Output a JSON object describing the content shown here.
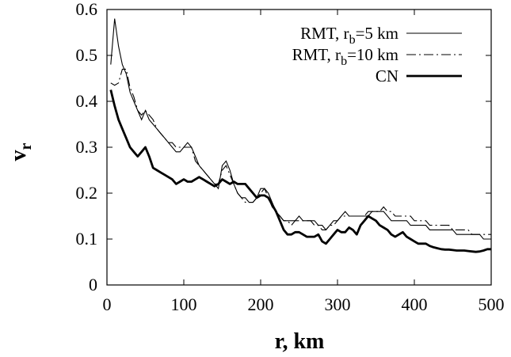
{
  "chart_data": {
    "type": "line",
    "title": "",
    "xlabel": "r, km",
    "ylabel": {
      "main": "v",
      "sub": "r"
    },
    "xlim": [
      0,
      500
    ],
    "ylim": [
      0,
      0.6
    ],
    "xticks": [
      0,
      100,
      200,
      300,
      400,
      500
    ],
    "yticks": [
      0,
      0.1,
      0.2,
      0.3,
      0.4,
      0.5,
      0.6
    ],
    "xtick_labels": [
      "0",
      "100",
      "200",
      "300",
      "400",
      "500"
    ],
    "ytick_labels": [
      "0",
      "0.1",
      "0.2",
      "0.3",
      "0.4",
      "0.5",
      "0.6"
    ],
    "grid": false,
    "legend_position": "top-right",
    "series": [
      {
        "name": "RMT, r_b=5 km",
        "legend": {
          "pre": "RMT, r",
          "sub": "b",
          "post": "=5 km"
        },
        "style": "thin-solid",
        "x": [
          5,
          10,
          15,
          20,
          25,
          30,
          35,
          40,
          45,
          50,
          55,
          60,
          65,
          70,
          75,
          80,
          85,
          90,
          95,
          100,
          105,
          110,
          115,
          120,
          125,
          130,
          135,
          140,
          145,
          150,
          155,
          160,
          165,
          170,
          175,
          180,
          185,
          190,
          195,
          200,
          205,
          210,
          215,
          220,
          225,
          230,
          235,
          240,
          245,
          250,
          255,
          260,
          265,
          270,
          275,
          280,
          285,
          290,
          295,
          300,
          305,
          310,
          315,
          320,
          325,
          330,
          335,
          340,
          345,
          350,
          355,
          360,
          365,
          370,
          375,
          380,
          385,
          390,
          395,
          400,
          405,
          410,
          415,
          420,
          425,
          430,
          435,
          440,
          445,
          450,
          455,
          460,
          465,
          470,
          475,
          480,
          485,
          490,
          495,
          500
        ],
        "y": [
          0.48,
          0.58,
          0.52,
          0.48,
          0.46,
          0.42,
          0.4,
          0.38,
          0.36,
          0.38,
          0.36,
          0.35,
          0.34,
          0.33,
          0.32,
          0.31,
          0.3,
          0.29,
          0.29,
          0.3,
          0.31,
          0.3,
          0.28,
          0.26,
          0.25,
          0.24,
          0.23,
          0.22,
          0.21,
          0.26,
          0.27,
          0.25,
          0.22,
          0.2,
          0.19,
          0.19,
          0.18,
          0.18,
          0.19,
          0.21,
          0.21,
          0.2,
          0.18,
          0.16,
          0.15,
          0.14,
          0.14,
          0.14,
          0.14,
          0.15,
          0.14,
          0.14,
          0.14,
          0.14,
          0.13,
          0.13,
          0.12,
          0.13,
          0.14,
          0.14,
          0.15,
          0.16,
          0.15,
          0.15,
          0.15,
          0.15,
          0.15,
          0.15,
          0.16,
          0.16,
          0.16,
          0.16,
          0.15,
          0.14,
          0.14,
          0.14,
          0.14,
          0.14,
          0.13,
          0.13,
          0.13,
          0.13,
          0.13,
          0.12,
          0.12,
          0.12,
          0.12,
          0.12,
          0.12,
          0.12,
          0.11,
          0.11,
          0.11,
          0.11,
          0.11,
          0.11,
          0.11,
          0.1,
          0.1,
          0.1
        ]
      },
      {
        "name": "RMT, r_b=10 km",
        "legend": {
          "pre": "RMT, r",
          "sub": "b",
          "post": "=10 km"
        },
        "style": "dash-dot",
        "x": [
          5,
          10,
          15,
          20,
          25,
          30,
          35,
          40,
          45,
          50,
          55,
          60,
          65,
          70,
          75,
          80,
          85,
          90,
          95,
          100,
          105,
          110,
          115,
          120,
          125,
          130,
          135,
          140,
          145,
          150,
          155,
          160,
          165,
          170,
          175,
          180,
          185,
          190,
          195,
          200,
          205,
          210,
          215,
          220,
          225,
          230,
          235,
          240,
          245,
          250,
          255,
          260,
          265,
          270,
          275,
          280,
          285,
          290,
          295,
          300,
          305,
          310,
          315,
          320,
          325,
          330,
          335,
          340,
          345,
          350,
          355,
          360,
          365,
          370,
          375,
          380,
          385,
          390,
          395,
          400,
          405,
          410,
          415,
          420,
          425,
          430,
          435,
          440,
          445,
          450,
          455,
          460,
          465,
          470,
          475,
          480,
          485,
          490,
          495,
          500
        ],
        "y": [
          0.44,
          0.435,
          0.44,
          0.47,
          0.47,
          0.43,
          0.41,
          0.38,
          0.37,
          0.38,
          0.37,
          0.36,
          0.34,
          0.33,
          0.32,
          0.31,
          0.31,
          0.3,
          0.3,
          0.3,
          0.3,
          0.3,
          0.27,
          0.26,
          0.25,
          0.24,
          0.23,
          0.22,
          0.22,
          0.25,
          0.26,
          0.24,
          0.22,
          0.2,
          0.19,
          0.18,
          0.18,
          0.18,
          0.19,
          0.2,
          0.21,
          0.19,
          0.17,
          0.16,
          0.15,
          0.14,
          0.14,
          0.13,
          0.14,
          0.14,
          0.14,
          0.14,
          0.14,
          0.13,
          0.13,
          0.12,
          0.12,
          0.13,
          0.13,
          0.14,
          0.15,
          0.15,
          0.15,
          0.15,
          0.15,
          0.15,
          0.15,
          0.16,
          0.16,
          0.16,
          0.16,
          0.17,
          0.16,
          0.16,
          0.15,
          0.15,
          0.15,
          0.15,
          0.15,
          0.14,
          0.14,
          0.14,
          0.14,
          0.13,
          0.13,
          0.13,
          0.13,
          0.13,
          0.13,
          0.12,
          0.12,
          0.12,
          0.12,
          0.12,
          0.11,
          0.11,
          0.11,
          0.11,
          0.11,
          0.11
        ]
      },
      {
        "name": "CN",
        "legend": {
          "pre": "CN",
          "sub": "",
          "post": ""
        },
        "style": "thick-solid",
        "x": [
          5,
          10,
          15,
          20,
          25,
          30,
          35,
          40,
          45,
          50,
          55,
          60,
          65,
          70,
          75,
          80,
          85,
          90,
          95,
          100,
          105,
          110,
          115,
          120,
          125,
          130,
          135,
          140,
          145,
          150,
          155,
          160,
          165,
          170,
          175,
          180,
          185,
          190,
          195,
          200,
          205,
          210,
          215,
          220,
          225,
          230,
          235,
          240,
          245,
          250,
          255,
          260,
          265,
          270,
          275,
          280,
          285,
          290,
          295,
          300,
          305,
          310,
          315,
          320,
          325,
          330,
          335,
          340,
          345,
          350,
          355,
          360,
          365,
          370,
          375,
          380,
          385,
          390,
          395,
          400,
          405,
          410,
          415,
          420,
          425,
          430,
          435,
          440,
          445,
          450,
          455,
          460,
          465,
          470,
          475,
          480,
          485,
          490,
          495,
          500
        ],
        "y": [
          0.425,
          0.39,
          0.36,
          0.34,
          0.32,
          0.3,
          0.29,
          0.28,
          0.29,
          0.3,
          0.28,
          0.255,
          0.25,
          0.245,
          0.24,
          0.235,
          0.23,
          0.22,
          0.225,
          0.23,
          0.225,
          0.225,
          0.23,
          0.235,
          0.23,
          0.225,
          0.22,
          0.215,
          0.22,
          0.23,
          0.225,
          0.22,
          0.225,
          0.22,
          0.22,
          0.22,
          0.21,
          0.2,
          0.19,
          0.195,
          0.195,
          0.19,
          0.175,
          0.16,
          0.14,
          0.12,
          0.11,
          0.11,
          0.115,
          0.115,
          0.11,
          0.105,
          0.105,
          0.105,
          0.11,
          0.095,
          0.09,
          0.1,
          0.11,
          0.12,
          0.115,
          0.115,
          0.125,
          0.12,
          0.11,
          0.13,
          0.14,
          0.15,
          0.145,
          0.14,
          0.13,
          0.125,
          0.12,
          0.11,
          0.105,
          0.11,
          0.115,
          0.105,
          0.1,
          0.095,
          0.09,
          0.09,
          0.09,
          0.085,
          0.082,
          0.08,
          0.078,
          0.077,
          0.077,
          0.076,
          0.075,
          0.075,
          0.075,
          0.074,
          0.073,
          0.072,
          0.073,
          0.075,
          0.078,
          0.078
        ]
      }
    ]
  }
}
